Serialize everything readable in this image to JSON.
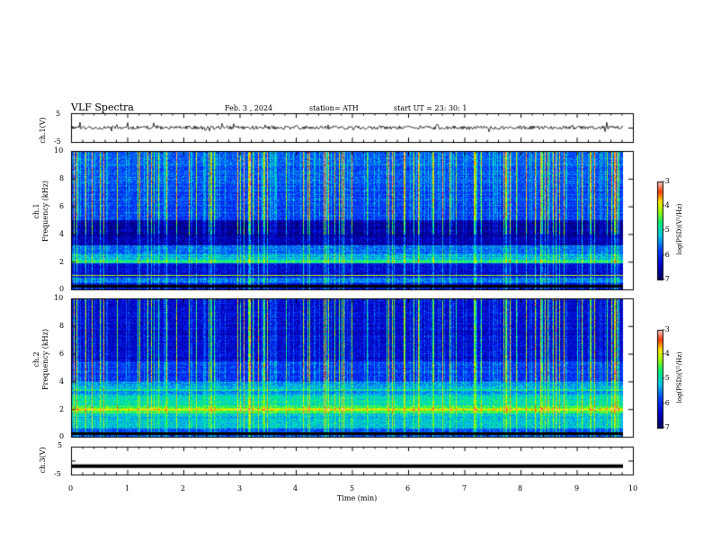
{
  "header": {
    "title": "VLF  Spectra",
    "date": "Feb. 3  , 2024",
    "station": "station= ATH",
    "start": "start  UT  =    23: 30: 1"
  },
  "chart_data": [
    {
      "type": "line",
      "ylabel": "ch.1(V)",
      "yticks": [
        "5",
        "-5"
      ],
      "ylim": [
        -5,
        5
      ],
      "xlim": [
        0,
        10
      ],
      "series_level": 0
    },
    {
      "type": "heatmap",
      "ylabel_top": "ch.1",
      "ylabel": "Frequency  (kHz)",
      "yticks": [
        "10",
        "8",
        "6",
        "4",
        "2",
        "0"
      ],
      "ylim": [
        0,
        10
      ],
      "xlim": [
        0,
        10
      ],
      "colorbar": {
        "label": "log(PSD)(V²/Hz)",
        "ticks": [
          "-3",
          "-4",
          "-5",
          "-6",
          "-7"
        ],
        "range": [
          -7,
          -3
        ]
      }
    },
    {
      "type": "heatmap",
      "ylabel_top": "ch.2",
      "ylabel": "Frequency  (kHz)",
      "yticks": [
        "10",
        "8",
        "6",
        "4",
        "2",
        "0"
      ],
      "ylim": [
        0,
        10
      ],
      "xlim": [
        0,
        10
      ],
      "colorbar": {
        "label": "log(PSD)(V²/Hz)",
        "ticks": [
          "-3",
          "-4",
          "-5",
          "-6",
          "-7"
        ],
        "range": [
          -7,
          -3
        ]
      }
    },
    {
      "type": "line",
      "ylabel": "ch.3(V)",
      "yticks": [
        "5",
        "-5"
      ],
      "ylim": [
        -5,
        5
      ],
      "xlim": [
        0,
        10
      ],
      "series_level": -2,
      "xlabel": "Time  (min)",
      "xticks": [
        "0",
        "1",
        "2",
        "3",
        "4",
        "5",
        "6",
        "7",
        "8",
        "9",
        "10"
      ]
    }
  ],
  "colors": {
    "dark_blue": "#00008b",
    "blue": "#0000ff",
    "cyan": "#00c8ff",
    "green": "#00ff40",
    "yellow": "#ffff00",
    "red": "#ff0000",
    "pink": "#ffc0c0"
  }
}
